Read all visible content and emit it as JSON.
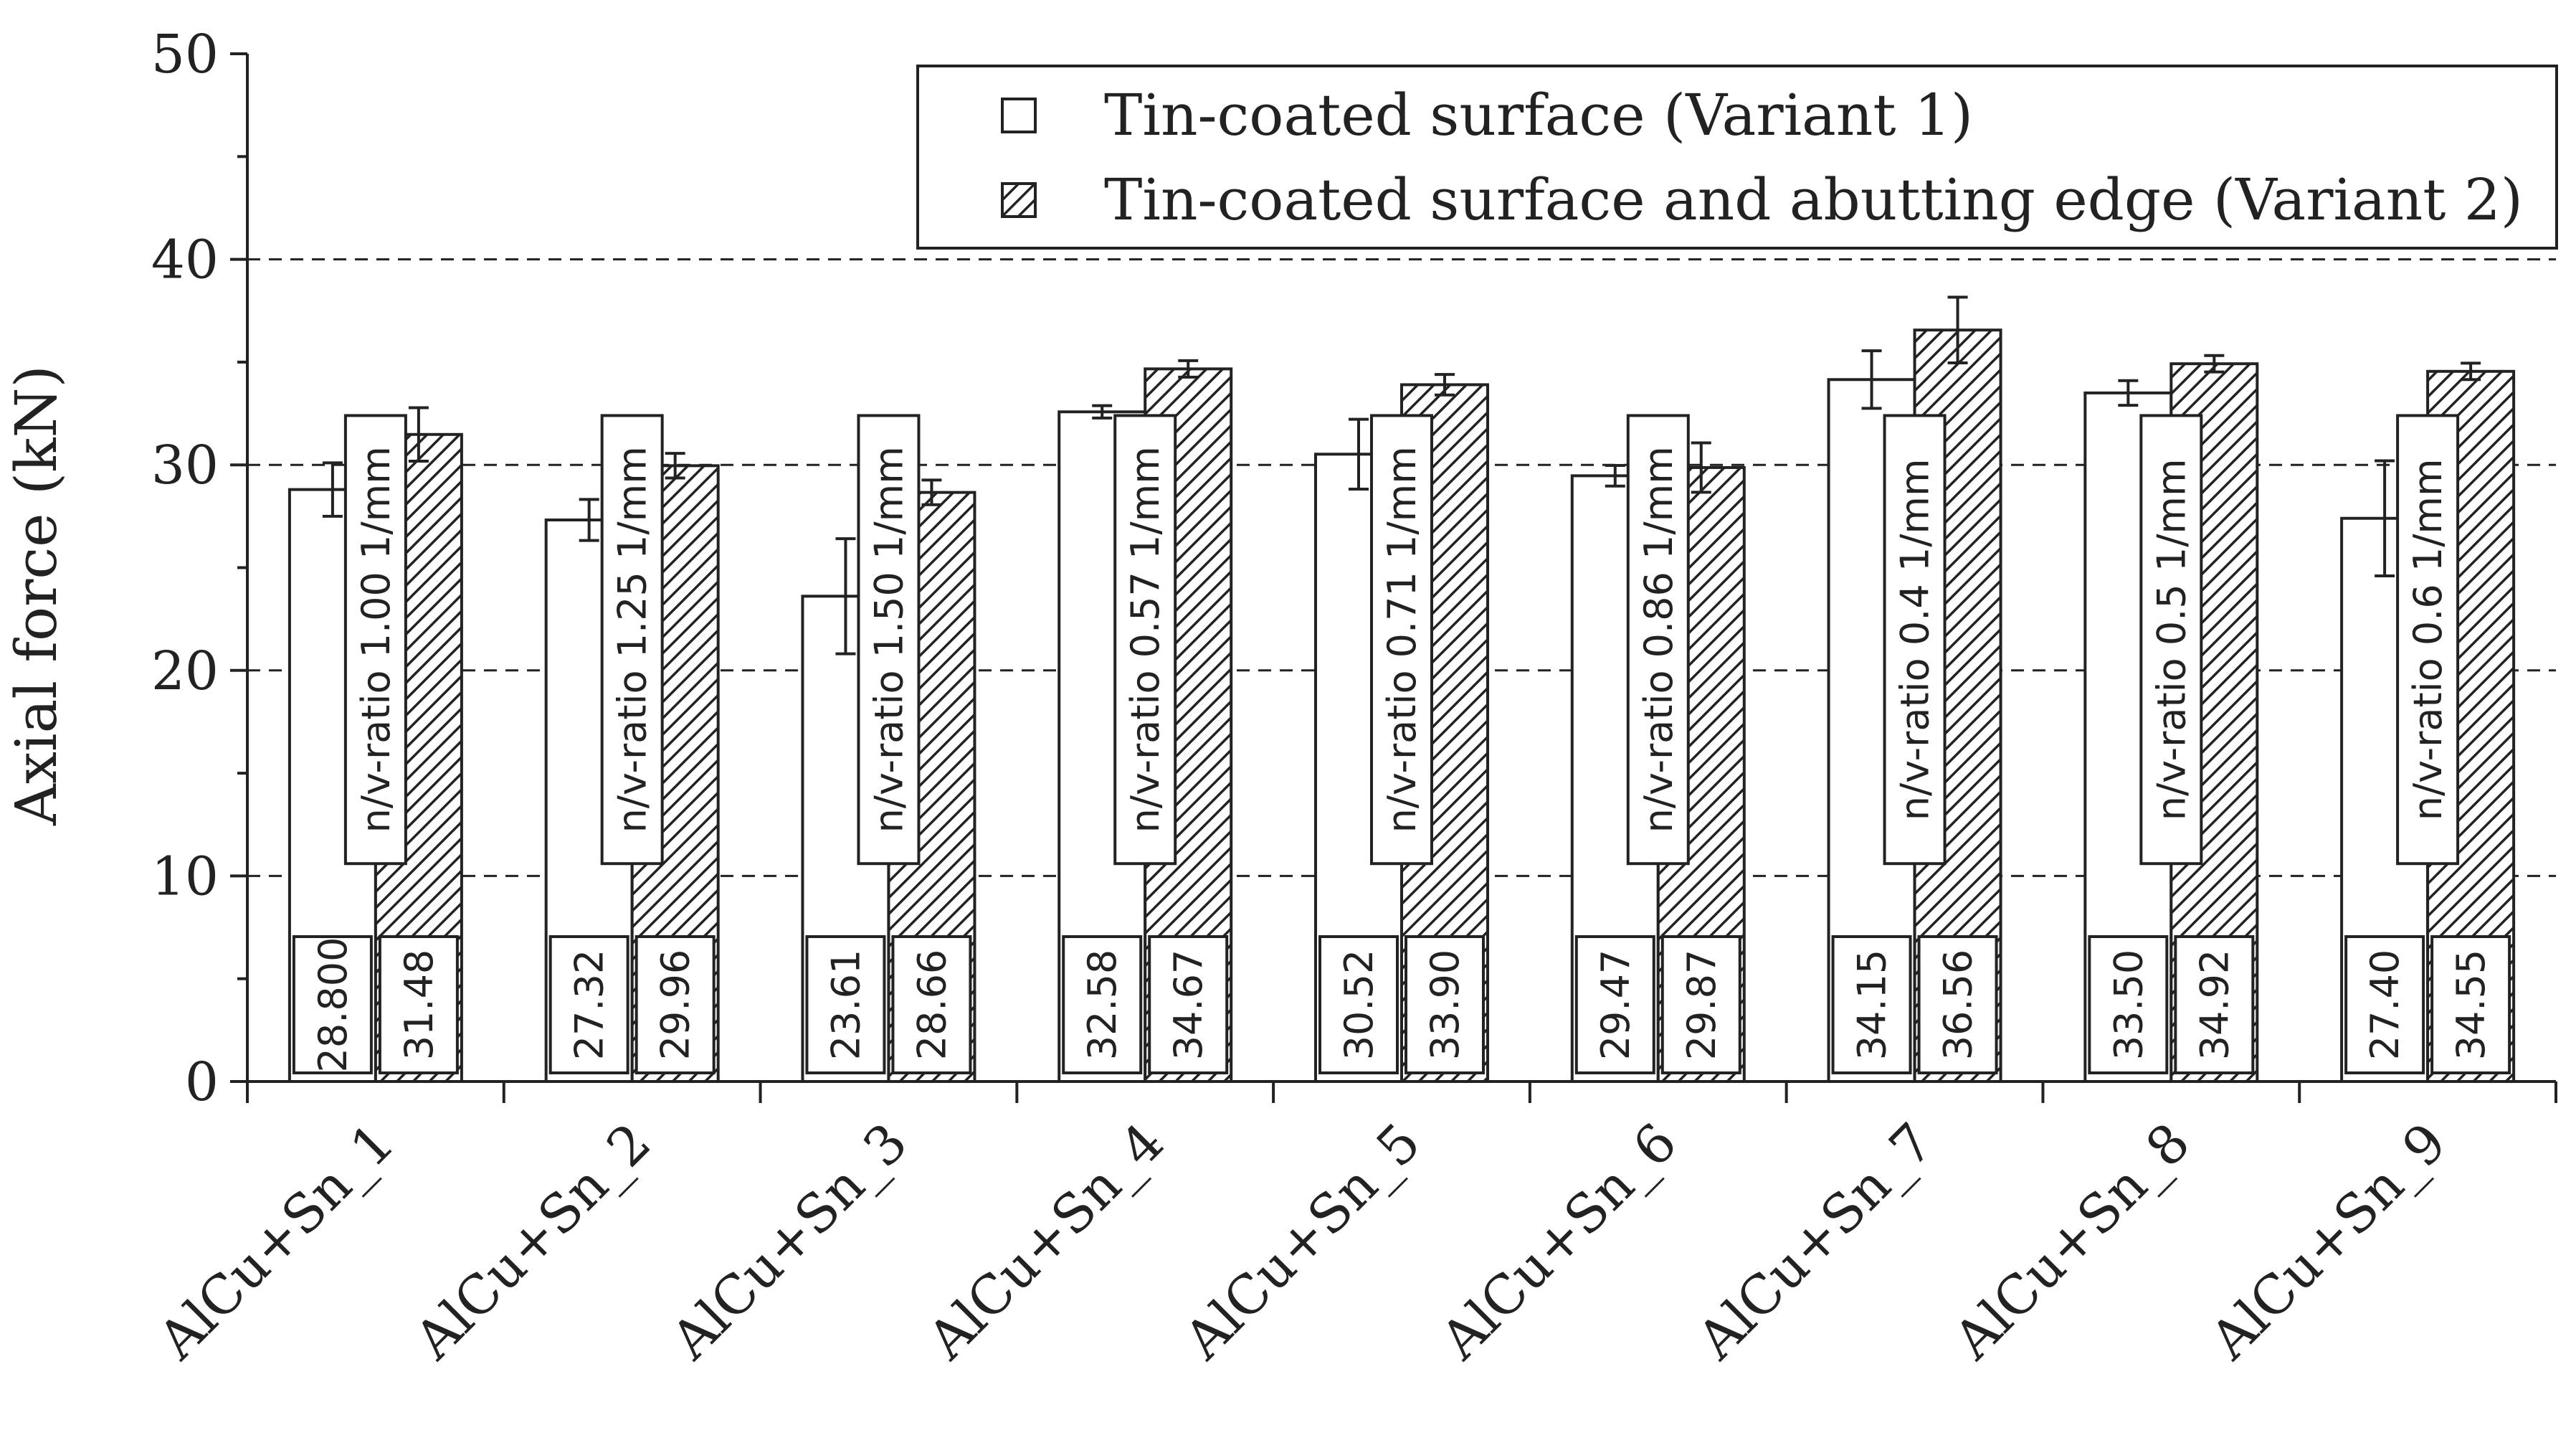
{
  "chart_data": {
    "type": "bar",
    "ylabel": "Axial force (kN)",
    "ylim": [
      0,
      50
    ],
    "yticks": [
      0,
      10,
      20,
      30,
      40,
      50
    ],
    "grid": "dashed at 10, 20, 30, 40",
    "legend_position": "top-right",
    "categories": [
      "AlCu+Sn_1",
      "AlCu+Sn_2",
      "AlCu+Sn_3",
      "AlCu+Sn_4",
      "AlCu+Sn_5",
      "AlCu+Sn_6",
      "AlCu+Sn_7",
      "AlCu+Sn_8",
      "AlCu+Sn_9"
    ],
    "nv_ratio_labels": [
      "n/v-ratio  1.00 1/mm",
      "n/v-ratio  1.25 1/mm",
      "n/v-ratio  1.50 1/mm",
      "n/v-ratio  0.57 1/mm",
      "n/v-ratio  0.71 1/mm",
      "n/v-ratio  0.86 1/mm",
      "n/v-ratio  0.4 1/mm",
      "n/v-ratio  0.5 1/mm",
      "n/v-ratio  0.6 1/mm"
    ],
    "series": [
      {
        "name": "Tin-coated surface (Variant 1)",
        "pattern": "none",
        "values": [
          28.8,
          27.32,
          23.61,
          32.58,
          30.52,
          29.47,
          34.15,
          33.5,
          27.4
        ],
        "value_labels": [
          "28.800",
          "27.32",
          "23.61",
          "32.58",
          "30.52",
          "29.47",
          "34.15",
          "33.50",
          "27.40"
        ],
        "errors": [
          1.3,
          1.0,
          2.8,
          0.3,
          1.7,
          0.5,
          1.4,
          0.6,
          2.8
        ]
      },
      {
        "name": "Tin-coated surface and abutting edge (Variant 2)",
        "pattern": "hatched",
        "values": [
          31.48,
          29.96,
          28.66,
          34.67,
          33.9,
          29.87,
          36.56,
          34.92,
          34.55
        ],
        "value_labels": [
          "31.48",
          "29.96",
          "28.66",
          "34.67",
          "33.90",
          "29.87",
          "36.56",
          "34.92",
          "34.55"
        ],
        "errors": [
          1.3,
          0.6,
          0.6,
          0.4,
          0.5,
          1.2,
          1.6,
          0.4,
          0.4
        ]
      }
    ]
  },
  "colors": {
    "axis": "#222222",
    "bar_fill_1": "#ffffff",
    "hatch": "#222222"
  }
}
